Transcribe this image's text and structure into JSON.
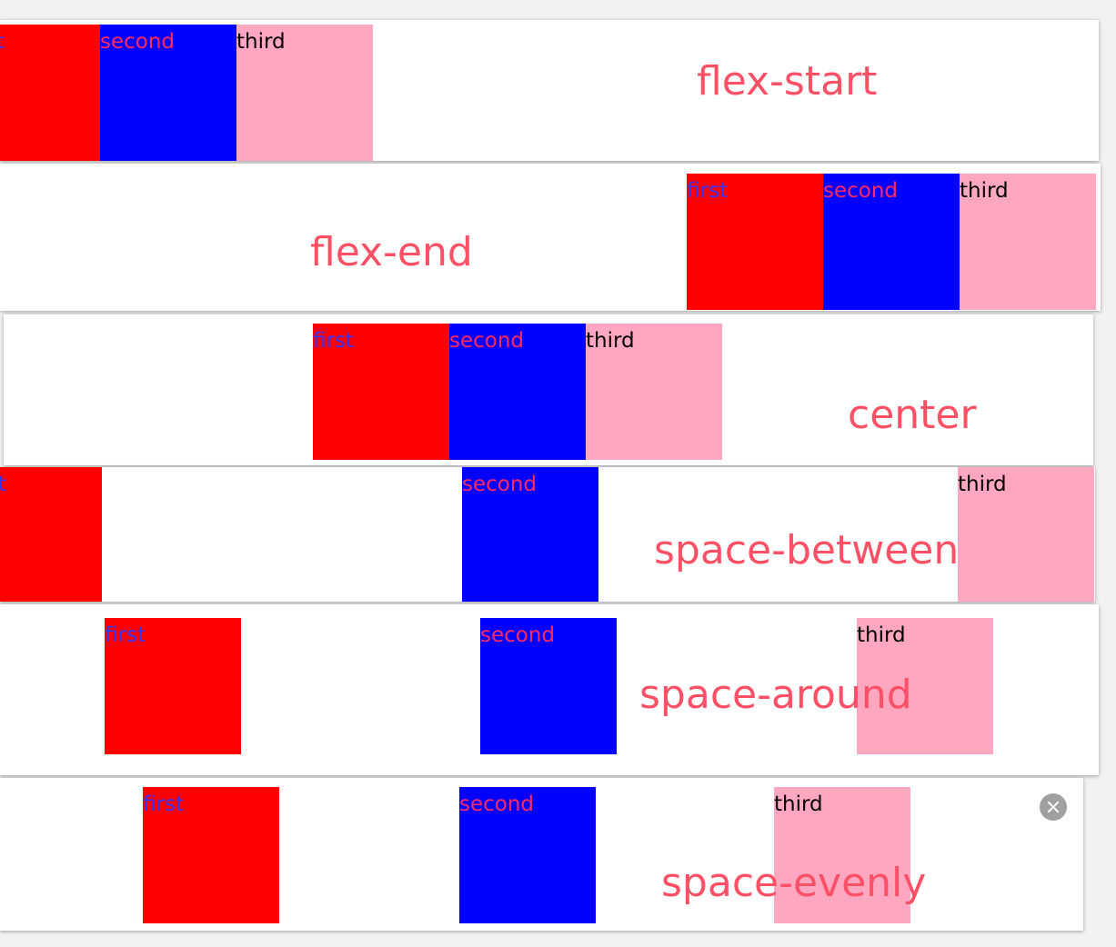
{
  "colors": {
    "first": "#ff0000",
    "second": "#0000ff",
    "third": "#ffa6c1",
    "label": "#ff5066"
  },
  "rows": [
    {
      "label": "flex-start",
      "items": [
        "first",
        "second",
        "third"
      ]
    },
    {
      "label": "flex-end",
      "items": [
        "first",
        "second",
        "third"
      ]
    },
    {
      "label": "center",
      "items": [
        "first",
        "second",
        "third"
      ]
    },
    {
      "label": "space-between",
      "items": [
        "first",
        "second",
        "third"
      ]
    },
    {
      "label": "space-around",
      "items": [
        "first",
        "second",
        "third"
      ]
    },
    {
      "label": "space-evenly",
      "items": [
        "first",
        "second",
        "third"
      ]
    }
  ],
  "close_icon": "close-icon"
}
